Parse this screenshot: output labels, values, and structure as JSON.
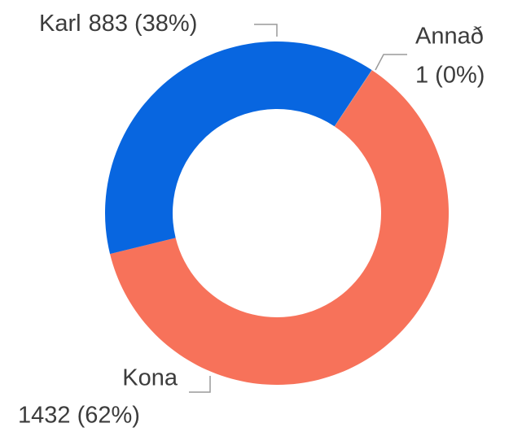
{
  "chart_data": {
    "type": "donut",
    "categories": [
      "Annað",
      "Kona",
      "Karl"
    ],
    "values": [
      1,
      1432,
      883
    ],
    "value_labels": [
      "1 (0%)",
      "1432 (62%)",
      "883 (38%)"
    ],
    "colors": [
      "#9e9e9e",
      "#f7725a",
      "#0866e0"
    ]
  }
}
